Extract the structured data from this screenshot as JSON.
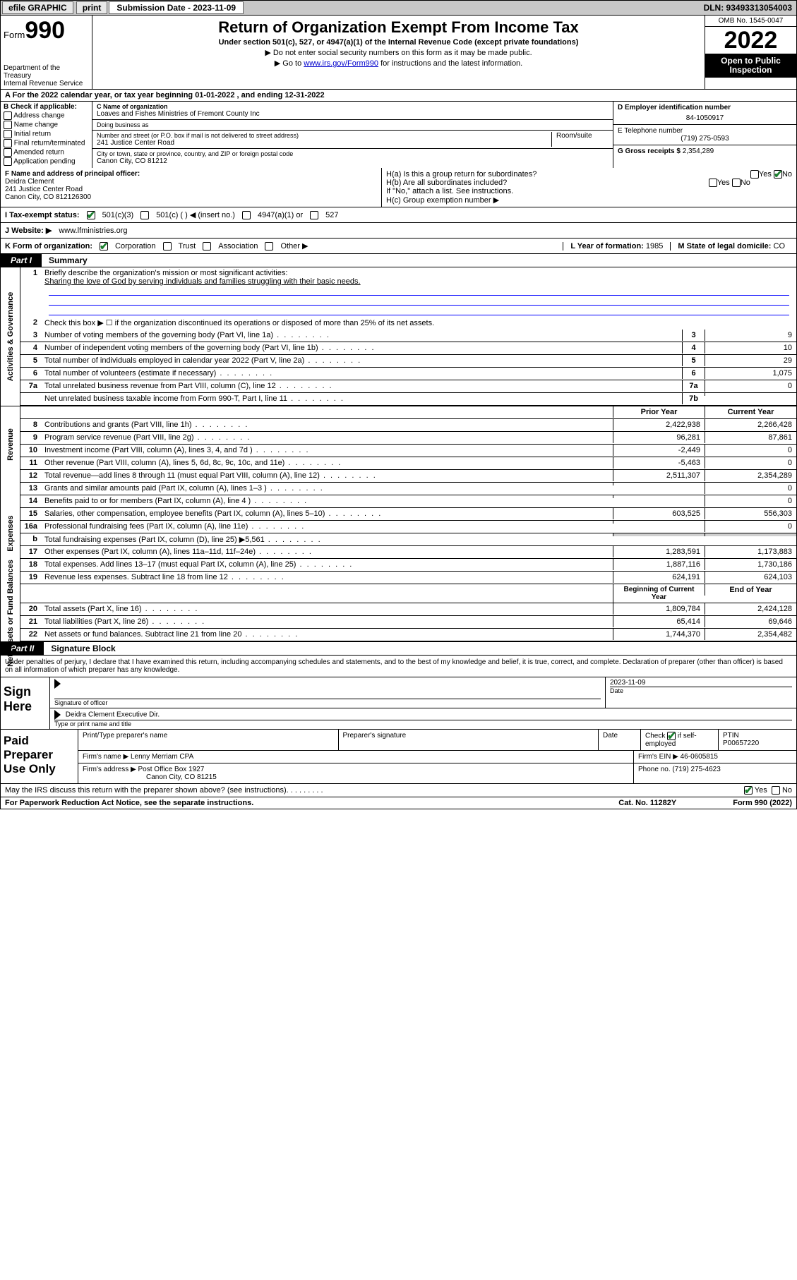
{
  "colors": {
    "topbar_bg": "#c8c8c8",
    "link": "#0000cc",
    "check_green": "#1a7f2e",
    "shade": "#d0d0d0",
    "rule_blue": "#0000ff"
  },
  "topbar": {
    "efile": "efile GRAPHIC",
    "print": "print",
    "sub_label": "Submission Date - 2023-11-09",
    "dln": "DLN: 93493313054003"
  },
  "header": {
    "form_word": "Form",
    "form_num": "990",
    "title": "Return of Organization Exempt From Income Tax",
    "sub1": "Under section 501(c), 527, or 4947(a)(1) of the Internal Revenue Code (except private foundations)",
    "sub2": "▶ Do not enter social security numbers on this form as it may be made public.",
    "sub3_pre": "▶ Go to ",
    "sub3_link": "www.irs.gov/Form990",
    "sub3_post": " for instructions and the latest information.",
    "dept": "Department of the Treasury",
    "irs": "Internal Revenue Service",
    "omb": "OMB No. 1545-0047",
    "year": "2022",
    "open": "Open to Public Inspection"
  },
  "lineA": "A For the 2022 calendar year, or tax year beginning 01-01-2022   , and ending 12-31-2022",
  "colB": {
    "hdr": "B Check if applicable:",
    "opts": [
      "Address change",
      "Name change",
      "Initial return",
      "Final return/terminated",
      "Amended return",
      "Application pending"
    ]
  },
  "colC": {
    "name_lbl": "C Name of organization",
    "name": "Loaves and Fishes Ministries of Fremont County Inc",
    "dba_lbl": "Doing business as",
    "dba": "",
    "addr_lbl": "Number and street (or P.O. box if mail is not delivered to street address)",
    "room_lbl": "Room/suite",
    "addr": "241 Justice Center Road",
    "city_lbl": "City or town, state or province, country, and ZIP or foreign postal code",
    "city": "Canon City, CO  81212"
  },
  "colD": {
    "ein_lbl": "D Employer identification number",
    "ein": "84-1050917",
    "tel_lbl": "E Telephone number",
    "tel": "(719) 275-0593",
    "gross_lbl": "G Gross receipts $",
    "gross": "2,354,289"
  },
  "rowF": {
    "lbl": "F Name and address of principal officer:",
    "name": "Deidra Clement",
    "addr1": "241 Justice Center Road",
    "addr2": "Canon City, CO  812126300"
  },
  "rowH": {
    "a": "H(a)  Is this a group return for subordinates?",
    "a_yes": "Yes",
    "a_no": "No",
    "b": "H(b)  Are all subordinates included?",
    "b_yes": "Yes",
    "b_no": "No",
    "b_note": "If \"No,\" attach a list. See instructions.",
    "c": "H(c)  Group exemption number ▶"
  },
  "rowI": {
    "lbl": "I   Tax-exempt status:",
    "o1": "501(c)(3)",
    "o2": "501(c) (  ) ◀ (insert no.)",
    "o3": "4947(a)(1) or",
    "o4": "527"
  },
  "rowJ": {
    "lbl": "J   Website: ▶",
    "val": "www.lfministries.org"
  },
  "rowK": {
    "lbl": "K Form of organization:",
    "o1": "Corporation",
    "o2": "Trust",
    "o3": "Association",
    "o4": "Other ▶",
    "yr_lbl": "L Year of formation:",
    "yr": "1985",
    "st_lbl": "M State of legal domicile:",
    "st": "CO"
  },
  "part1": {
    "tag": "Part I",
    "title": "Summary"
  },
  "summary": {
    "gov_label": "Activities & Governance",
    "rev_label": "Revenue",
    "exp_label": "Expenses",
    "net_label": "Net Assets or Fund Balances",
    "q1_lbl": "Briefly describe the organization's mission or most significant activities:",
    "q1_val": "Sharing the love of God by serving individuals and families struggling with their basic needs.",
    "q2": "Check this box ▶ ☐  if the organization discontinued its operations or disposed of more than 25% of its net assets.",
    "lines_gov": [
      {
        "n": "3",
        "t": "Number of voting members of the governing body (Part VI, line 1a)",
        "box": "3",
        "v": "9"
      },
      {
        "n": "4",
        "t": "Number of independent voting members of the governing body (Part VI, line 1b)",
        "box": "4",
        "v": "10"
      },
      {
        "n": "5",
        "t": "Total number of individuals employed in calendar year 2022 (Part V, line 2a)",
        "box": "5",
        "v": "29"
      },
      {
        "n": "6",
        "t": "Total number of volunteers (estimate if necessary)",
        "box": "6",
        "v": "1,075"
      },
      {
        "n": "7a",
        "t": "Total unrelated business revenue from Part VIII, column (C), line 12",
        "box": "7a",
        "v": "0"
      },
      {
        "n": "",
        "t": "Net unrelated business taxable income from Form 990-T, Part I, line 11",
        "box": "7b",
        "v": ""
      }
    ],
    "hdr_prior": "Prior Year",
    "hdr_curr": "Current Year",
    "lines_rev": [
      {
        "n": "8",
        "t": "Contributions and grants (Part VIII, line 1h)",
        "p": "2,422,938",
        "c": "2,266,428"
      },
      {
        "n": "9",
        "t": "Program service revenue (Part VIII, line 2g)",
        "p": "96,281",
        "c": "87,861"
      },
      {
        "n": "10",
        "t": "Investment income (Part VIII, column (A), lines 3, 4, and 7d )",
        "p": "-2,449",
        "c": "0"
      },
      {
        "n": "11",
        "t": "Other revenue (Part VIII, column (A), lines 5, 6d, 8c, 9c, 10c, and 11e)",
        "p": "-5,463",
        "c": "0"
      },
      {
        "n": "12",
        "t": "Total revenue—add lines 8 through 11 (must equal Part VIII, column (A), line 12)",
        "p": "2,511,307",
        "c": "2,354,289"
      }
    ],
    "lines_exp": [
      {
        "n": "13",
        "t": "Grants and similar amounts paid (Part IX, column (A), lines 1–3 )",
        "p": "",
        "c": "0"
      },
      {
        "n": "14",
        "t": "Benefits paid to or for members (Part IX, column (A), line 4 )",
        "p": "",
        "c": "0"
      },
      {
        "n": "15",
        "t": "Salaries, other compensation, employee benefits (Part IX, column (A), lines 5–10)",
        "p": "603,525",
        "c": "556,303"
      },
      {
        "n": "16a",
        "t": "Professional fundraising fees (Part IX, column (A), line 11e)",
        "p": "",
        "c": "0"
      },
      {
        "n": "b",
        "t": "Total fundraising expenses (Part IX, column (D), line 25) ▶5,561",
        "p": "SHADE",
        "c": "SHADE"
      },
      {
        "n": "17",
        "t": "Other expenses (Part IX, column (A), lines 11a–11d, 11f–24e)",
        "p": "1,283,591",
        "c": "1,173,883"
      },
      {
        "n": "18",
        "t": "Total expenses. Add lines 13–17 (must equal Part IX, column (A), line 25)",
        "p": "1,887,116",
        "c": "1,730,186"
      },
      {
        "n": "19",
        "t": "Revenue less expenses. Subtract line 18 from line 12",
        "p": "624,191",
        "c": "624,103"
      }
    ],
    "hdr_beg": "Beginning of Current Year",
    "hdr_end": "End of Year",
    "lines_net": [
      {
        "n": "20",
        "t": "Total assets (Part X, line 16)",
        "p": "1,809,784",
        "c": "2,424,128"
      },
      {
        "n": "21",
        "t": "Total liabilities (Part X, line 26)",
        "p": "65,414",
        "c": "69,646"
      },
      {
        "n": "22",
        "t": "Net assets or fund balances. Subtract line 21 from line 20",
        "p": "1,744,370",
        "c": "2,354,482"
      }
    ]
  },
  "part2": {
    "tag": "Part II",
    "title": "Signature Block"
  },
  "sig": {
    "perjury": "Under penalties of perjury, I declare that I have examined this return, including accompanying schedules and statements, and to the best of my knowledge and belief, it is true, correct, and complete. Declaration of preparer (other than officer) is based on all information of which preparer has any knowledge.",
    "sign_here": "Sign Here",
    "sig_officer_lbl": "Signature of officer",
    "date_lbl": "Date",
    "date_val": "2023-11-09",
    "name_title": "Deidra Clement Executive Dir.",
    "name_title_lbl": "Type or print name and title"
  },
  "paid": {
    "lbl": "Paid Preparer Use Only",
    "h1": "Print/Type preparer's name",
    "h2": "Preparer's signature",
    "h3": "Date",
    "h4_pre": "Check",
    "h4_post": "if self-employed",
    "h5": "PTIN",
    "ptin": "P00657220",
    "firm_name_lbl": "Firm's name   ▶",
    "firm_name": "Lenny Merriam CPA",
    "firm_ein_lbl": "Firm's EIN ▶",
    "firm_ein": "46-0605815",
    "firm_addr_lbl": "Firm's address ▶",
    "firm_addr1": "Post Office Box 1927",
    "firm_addr2": "Canon City, CO  81215",
    "phone_lbl": "Phone no.",
    "phone": "(719) 275-4623"
  },
  "discuss": {
    "q": "May the IRS discuss this return with the preparer shown above? (see instructions)",
    "yes": "Yes",
    "no": "No"
  },
  "footer": {
    "l": "For Paperwork Reduction Act Notice, see the separate instructions.",
    "c": "Cat. No. 11282Y",
    "r": "Form 990 (2022)"
  }
}
